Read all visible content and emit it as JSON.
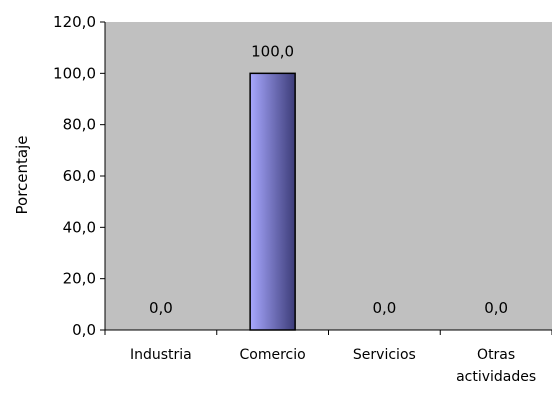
{
  "chart_data": {
    "type": "bar",
    "title": "",
    "xlabel": "",
    "ylabel": "Porcentaje",
    "ylim": [
      0,
      120
    ],
    "ytick_step": 20,
    "ytick_labels": [
      "0,0",
      "20,0",
      "40,0",
      "60,0",
      "80,0",
      "100,0",
      "120,0"
    ],
    "categories": [
      "Industria",
      "Comercio",
      "Servicios",
      "Otras actividades"
    ],
    "values": [
      0,
      100,
      0,
      0
    ],
    "data_labels": [
      "0,0",
      "100,0",
      "0,0",
      "0,0"
    ],
    "grid": false,
    "legend": "none",
    "colors": {
      "plot_background": "#c0c0c0",
      "bar_light": "#a8a8ff",
      "bar_dark": "#3c3c78",
      "axis": "#000000"
    }
  }
}
